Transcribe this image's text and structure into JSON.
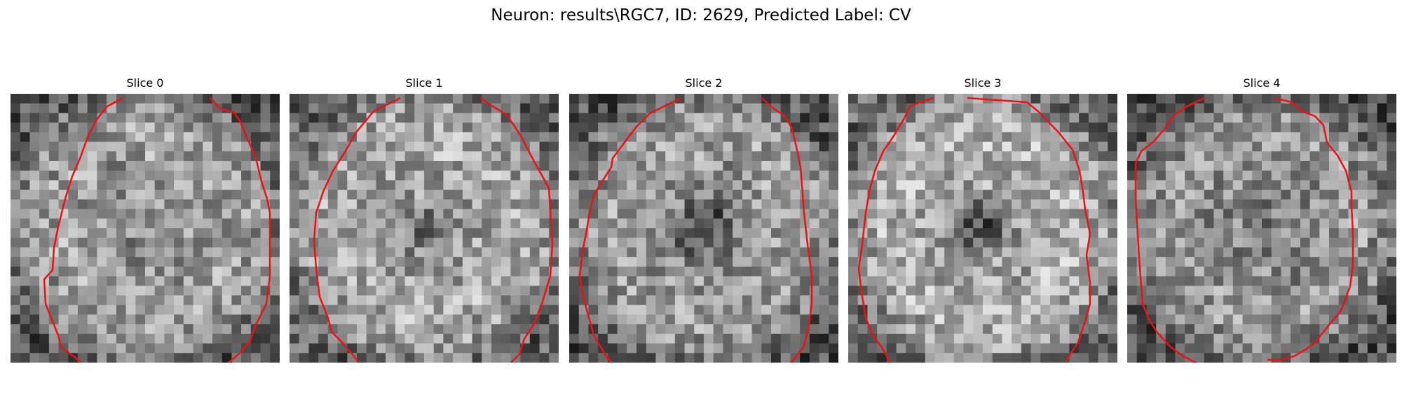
{
  "figure": {
    "title": "Neuron: results\\RGC7, ID: 2629, Predicted Label: CV",
    "contour_color": "#ee1111",
    "colormap": "grayscale"
  },
  "panels": [
    {
      "title": "Slice 0",
      "seed": 11,
      "center_darkness": 0.05,
      "mean": 0.58
    },
    {
      "title": "Slice 1",
      "seed": 23,
      "center_darkness": 0.22,
      "mean": 0.62
    },
    {
      "title": "Slice 2",
      "seed": 37,
      "center_darkness": 0.45,
      "mean": 0.57
    },
    {
      "title": "Slice 3",
      "seed": 41,
      "center_darkness": 0.45,
      "mean": 0.64
    },
    {
      "title": "Slice 4",
      "seed": 53,
      "center_darkness": 0.1,
      "mean": 0.55
    }
  ]
}
